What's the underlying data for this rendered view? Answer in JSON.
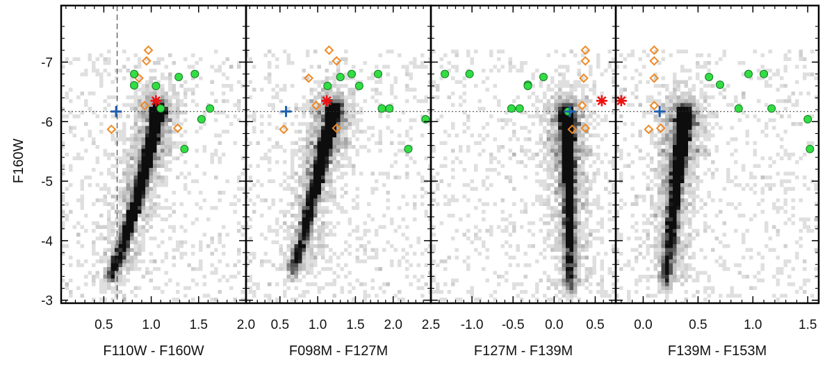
{
  "chart_data": {
    "type": "scatter",
    "ylabel": "F160W",
    "y_reversed": true,
    "ylim": [
      -2.95,
      -7.95
    ],
    "yticks": [
      -3,
      -4,
      -5,
      -6,
      -7
    ],
    "ytick_labels": [
      "-3",
      "-4",
      "-5",
      "-6",
      "-7"
    ],
    "y_reference_line": -6.17,
    "colors": {
      "density": "#000000",
      "green_points": "#33dd44",
      "orange_diamonds": "#ee8822",
      "red_star": "#ee1111",
      "blue_cross": "#1f5fb0",
      "reference_line": "#333333"
    },
    "panels": [
      {
        "xlabel": "F110W - F160W",
        "xlim": [
          0.05,
          2.0
        ],
        "xticks": [
          0.5,
          1.0,
          1.5,
          2.0
        ],
        "xtick_labels": [
          "0.5",
          "1.0",
          "1.5",
          "2.0"
        ],
        "x_reference_line": 0.64,
        "density_ridge": [
          [
            0.55,
            -3.3
          ],
          [
            0.68,
            -3.8
          ],
          [
            0.82,
            -4.5
          ],
          [
            0.95,
            -5.3
          ],
          [
            1.05,
            -6.0
          ],
          [
            1.08,
            -6.25
          ]
        ],
        "green_points": [
          [
            0.82,
            -6.8
          ],
          [
            0.82,
            -6.61
          ],
          [
            1.05,
            -6.6
          ],
          [
            1.1,
            -6.22
          ],
          [
            1.29,
            -6.75
          ],
          [
            1.46,
            -6.8
          ],
          [
            1.62,
            -6.22
          ],
          [
            1.53,
            -6.04
          ],
          [
            1.35,
            -5.54
          ]
        ],
        "orange_diamonds": [
          [
            0.97,
            -7.2
          ],
          [
            0.95,
            -7.02
          ],
          [
            0.87,
            -6.73
          ],
          [
            0.93,
            -6.27
          ],
          [
            0.58,
            -5.87
          ],
          [
            1.28,
            -5.89
          ]
        ],
        "red_star": [
          1.05,
          -6.35
        ],
        "blue_cross": [
          0.63,
          -6.17
        ]
      },
      {
        "xlabel": "F098M - F127M",
        "xlim": [
          0.05,
          2.5
        ],
        "xticks": [
          0.5,
          1.0,
          1.5,
          2.0,
          2.5
        ],
        "xtick_labels": [
          "0.5",
          "1.0",
          "1.5",
          "2.0",
          "2.5"
        ],
        "density_ridge": [
          [
            0.65,
            -3.4
          ],
          [
            0.8,
            -4.0
          ],
          [
            0.95,
            -4.8
          ],
          [
            1.08,
            -5.5
          ],
          [
            1.18,
            -6.0
          ],
          [
            1.22,
            -6.25
          ]
        ],
        "green_points": [
          [
            1.13,
            -6.6
          ],
          [
            1.3,
            -6.75
          ],
          [
            1.45,
            -6.8
          ],
          [
            1.55,
            -6.6
          ],
          [
            1.8,
            -6.8
          ],
          [
            1.85,
            -6.22
          ],
          [
            1.95,
            -6.22
          ],
          [
            2.43,
            -6.04
          ],
          [
            2.2,
            -5.54
          ]
        ],
        "orange_diamonds": [
          [
            1.15,
            -7.2
          ],
          [
            1.25,
            -7.02
          ],
          [
            0.88,
            -6.73
          ],
          [
            0.98,
            -6.27
          ],
          [
            0.55,
            -5.87
          ],
          [
            1.25,
            -5.89
          ]
        ],
        "red_star": [
          1.12,
          -6.35
        ],
        "blue_cross": [
          0.58,
          -6.17
        ]
      },
      {
        "xlabel": "F127M - F139M",
        "xlim": [
          -1.5,
          0.75
        ],
        "xticks": [
          -1.0,
          -0.5,
          0.0,
          0.5
        ],
        "xtick_labels": [
          "-1.0",
          "-0.5",
          "0.0",
          "0.5"
        ],
        "density_ridge": [
          [
            0.2,
            -3.1
          ],
          [
            0.19,
            -4.0
          ],
          [
            0.18,
            -5.0
          ],
          [
            0.16,
            -5.8
          ],
          [
            0.15,
            -6.2
          ]
        ],
        "green_points": [
          [
            -1.33,
            -6.8
          ],
          [
            -1.03,
            -6.8
          ],
          [
            -0.13,
            -6.75
          ],
          [
            -0.32,
            -6.62
          ],
          [
            -0.32,
            -6.6
          ],
          [
            -0.52,
            -6.22
          ],
          [
            -0.42,
            -6.22
          ],
          [
            0.17,
            -6.17
          ]
        ],
        "orange_diamonds": [
          [
            0.38,
            -7.2
          ],
          [
            0.38,
            -7.02
          ],
          [
            0.36,
            -6.73
          ],
          [
            0.34,
            -6.27
          ],
          [
            0.38,
            -5.89
          ],
          [
            0.22,
            -5.87
          ]
        ],
        "red_star": [
          0.58,
          -6.35
        ],
        "blue_cross": [
          0.19,
          -6.17
        ]
      },
      {
        "xlabel": "F139M - F153M",
        "xlim": [
          -0.25,
          1.6
        ],
        "xticks": [
          0.0,
          0.5,
          1.0,
          1.5
        ],
        "xtick_labels": [
          "0.0",
          "0.5",
          "1.0",
          "1.5"
        ],
        "density_ridge": [
          [
            0.2,
            -3.2
          ],
          [
            0.25,
            -4.0
          ],
          [
            0.3,
            -5.0
          ],
          [
            0.36,
            -5.8
          ],
          [
            0.38,
            -6.2
          ]
        ],
        "green_points": [
          [
            0.6,
            -6.75
          ],
          [
            0.7,
            -6.62
          ],
          [
            0.96,
            -6.8
          ],
          [
            1.1,
            -6.8
          ],
          [
            0.87,
            -6.22
          ],
          [
            1.17,
            -6.22
          ],
          [
            1.5,
            -6.04
          ],
          [
            1.52,
            -5.54
          ]
        ],
        "orange_diamonds": [
          [
            0.1,
            -7.2
          ],
          [
            0.1,
            -7.02
          ],
          [
            0.1,
            -6.73
          ],
          [
            0.1,
            -6.27
          ],
          [
            0.05,
            -5.87
          ],
          [
            0.16,
            -5.89
          ]
        ],
        "red_star": [
          -0.2,
          -6.35
        ],
        "blue_cross": [
          0.15,
          -6.17
        ]
      }
    ]
  }
}
